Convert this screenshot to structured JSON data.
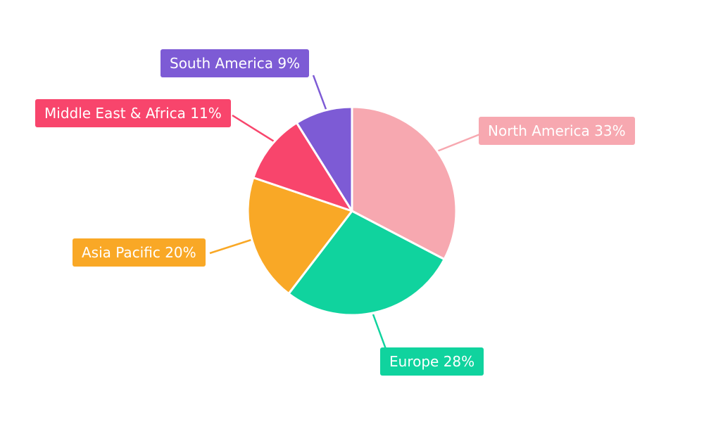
{
  "chart_data": {
    "type": "pie",
    "title": "",
    "labels": [
      "North America",
      "Europe",
      "Asia Pacific",
      "Middle East & Africa",
      "South America"
    ],
    "values": [
      33,
      28,
      20,
      11,
      9
    ],
    "unit": "%",
    "display_labels": [
      "North America 33%",
      "Europe 28%",
      "Asia Pacific 20%",
      "Middle East & Africa 11%",
      "South America 9%"
    ],
    "colors": [
      "#F7A8B0",
      "#10D39E",
      "#F9A826",
      "#F8456C",
      "#7D5BD5"
    ],
    "direction": "clockwise",
    "start_angle": "top",
    "legend": "none",
    "background": "#ffffff",
    "label_style": "callout-boxes-with-leader-lines",
    "slice_gap_color": "#ffffff"
  }
}
